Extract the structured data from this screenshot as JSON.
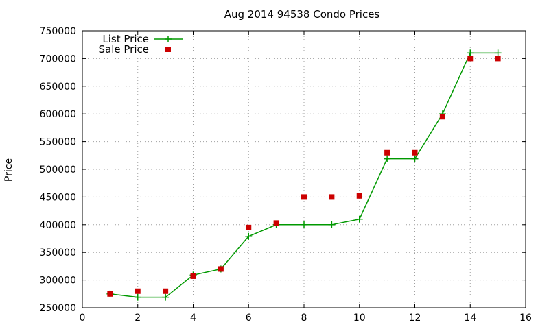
{
  "chart_data": {
    "type": "line",
    "title": "Aug 2014 94538 Condo Prices",
    "xlabel": "",
    "ylabel": "Price",
    "xlim": [
      0,
      16
    ],
    "ylim": [
      250000,
      750000
    ],
    "x_ticks": [
      0,
      2,
      4,
      6,
      8,
      10,
      12,
      14,
      16
    ],
    "y_ticks": [
      250000,
      300000,
      350000,
      400000,
      450000,
      500000,
      550000,
      600000,
      650000,
      700000,
      750000
    ],
    "grid": true,
    "legend_position": "top-left",
    "series": [
      {
        "name": "List Price",
        "style": "linespoints",
        "marker": "plus",
        "color": "#009900",
        "x": [
          1,
          2,
          3,
          4,
          5,
          6,
          7,
          8,
          9,
          10,
          11,
          12,
          13,
          14,
          15
        ],
        "y": [
          275000,
          269000,
          269000,
          309000,
          320000,
          379000,
          400000,
          400000,
          400000,
          410000,
          519000,
          519000,
          600000,
          710000,
          710000
        ]
      },
      {
        "name": "Sale Price",
        "style": "points",
        "marker": "square",
        "color": "#cc0000",
        "x": [
          1,
          2,
          3,
          4,
          5,
          6,
          7,
          8,
          9,
          10,
          11,
          12,
          13,
          14,
          15
        ],
        "y": [
          275000,
          280000,
          280000,
          307000,
          320000,
          395000,
          403000,
          450000,
          450000,
          452000,
          530000,
          530000,
          595000,
          700000,
          700000
        ]
      }
    ]
  }
}
